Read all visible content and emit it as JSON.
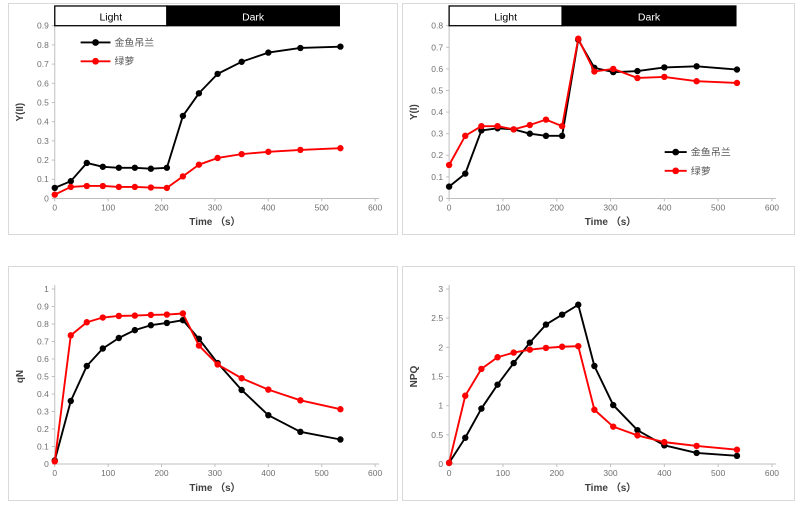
{
  "ui": {
    "colors": {
      "series_black": "#000000",
      "series_red": "#ff0000",
      "axis_line": "#bfbfbf",
      "tick_text": "#707070",
      "axis_title_text": "#404040",
      "legend_text": "#595959",
      "panel_border": "#d9d9d9",
      "band_dark_fill": "#000000",
      "band_light_fill": "#ffffff",
      "band_dark_text": "#ffffff",
      "band_light_text": "#000000",
      "background": "#ffffff"
    }
  },
  "chart_data": [
    {
      "type": "line",
      "ylabel": "Y(II)",
      "xlabel": "Time （s）",
      "x": [
        0,
        30,
        60,
        90,
        120,
        150,
        180,
        210,
        240,
        270,
        305,
        350,
        400,
        460,
        535
      ],
      "xticks": [
        "0",
        "100",
        "200",
        "300",
        "400",
        "500",
        "600"
      ],
      "yticks": [
        "0",
        "0.1",
        "0.2",
        "0.3",
        "0.4",
        "0.5",
        "0.6",
        "0.7",
        "0.8",
        "0.9"
      ],
      "xlim": [
        0,
        600
      ],
      "ylim": [
        0,
        0.9
      ],
      "grid": false,
      "legend_position": "top-left",
      "band": {
        "light_label": "Light",
        "dark_label": "Dark",
        "light_range_s": [
          0,
          210
        ],
        "dark_range_s": [
          210,
          533
        ]
      },
      "series": [
        {
          "key": "goldfish-plant",
          "name": "金鱼吊兰",
          "color": "#000000",
          "values": [
            0.055,
            0.09,
            0.185,
            0.165,
            0.16,
            0.16,
            0.155,
            0.16,
            0.43,
            0.548,
            0.649,
            0.712,
            0.76,
            0.784,
            0.791
          ]
        },
        {
          "key": "pothos",
          "name": "绿萝",
          "color": "#ff0000",
          "values": [
            0.02,
            0.06,
            0.065,
            0.065,
            0.06,
            0.06,
            0.057,
            0.055,
            0.115,
            0.176,
            0.211,
            0.231,
            0.243,
            0.253,
            0.262
          ]
        }
      ]
    },
    {
      "type": "line",
      "ylabel": "Y(I)",
      "xlabel": "Time （s）",
      "x": [
        0,
        30,
        60,
        90,
        120,
        150,
        180,
        210,
        240,
        270,
        305,
        350,
        400,
        460,
        535
      ],
      "xticks": [
        "0",
        "100",
        "200",
        "300",
        "400",
        "500",
        "600"
      ],
      "yticks": [
        "0",
        "0.1",
        "0.2",
        "0.3",
        "0.4",
        "0.5",
        "0.6",
        "0.7",
        "0.8"
      ],
      "xlim": [
        0,
        600
      ],
      "ylim": [
        0,
        0.8
      ],
      "grid": false,
      "legend_position": "middle-right",
      "band": {
        "light_label": "Light",
        "dark_label": "Dark",
        "light_range_s": [
          0,
          210
        ],
        "dark_range_s": [
          210,
          533
        ]
      },
      "series": [
        {
          "key": "goldfish-plant",
          "name": "金鱼吊兰",
          "color": "#000000",
          "values": [
            0.055,
            0.115,
            0.315,
            0.325,
            0.32,
            0.3,
            0.29,
            0.29,
            0.735,
            0.605,
            0.585,
            0.59,
            0.607,
            0.612,
            0.597
          ]
        },
        {
          "key": "pothos",
          "name": "绿萝",
          "color": "#ff0000",
          "values": [
            0.155,
            0.29,
            0.335,
            0.335,
            0.32,
            0.34,
            0.365,
            0.335,
            0.74,
            0.588,
            0.6,
            0.558,
            0.563,
            0.543,
            0.535
          ]
        }
      ]
    },
    {
      "type": "line",
      "ylabel": "qN",
      "xlabel": "Time （s）",
      "x": [
        0,
        30,
        60,
        90,
        120,
        150,
        180,
        210,
        240,
        270,
        305,
        350,
        400,
        460,
        535
      ],
      "xticks": [
        "0",
        "100",
        "200",
        "300",
        "400",
        "500",
        "600"
      ],
      "yticks": [
        "0",
        "0.1",
        "0.2",
        "0.3",
        "0.4",
        "0.5",
        "0.6",
        "0.7",
        "0.8",
        "0.9",
        "1"
      ],
      "xlim": [
        0,
        600
      ],
      "ylim": [
        0,
        1
      ],
      "grid": false,
      "legend_position": "none",
      "band": null,
      "series": [
        {
          "key": "goldfish-plant",
          "name": "金鱼吊兰",
          "color": "#000000",
          "values": [
            0.02,
            0.36,
            0.56,
            0.66,
            0.72,
            0.765,
            0.793,
            0.806,
            0.822,
            0.715,
            0.577,
            0.423,
            0.279,
            0.184,
            0.14
          ]
        },
        {
          "key": "pothos",
          "name": "绿萝",
          "color": "#ff0000",
          "values": [
            0.015,
            0.735,
            0.81,
            0.837,
            0.846,
            0.848,
            0.852,
            0.854,
            0.86,
            0.677,
            0.569,
            0.49,
            0.425,
            0.364,
            0.313
          ]
        }
      ]
    },
    {
      "type": "line",
      "ylabel": "NPQ",
      "xlabel": "Time （s）",
      "x": [
        0,
        30,
        60,
        90,
        120,
        150,
        180,
        210,
        240,
        270,
        305,
        350,
        400,
        460,
        535
      ],
      "xticks": [
        "0",
        "100",
        "200",
        "300",
        "400",
        "500",
        "600"
      ],
      "yticks": [
        "0",
        "0.5",
        "1",
        "1.5",
        "2",
        "2.5",
        "3"
      ],
      "xlim": [
        0,
        600
      ],
      "ylim": [
        0,
        3
      ],
      "grid": false,
      "legend_position": "none",
      "band": null,
      "series": [
        {
          "key": "goldfish-plant",
          "name": "金鱼吊兰",
          "color": "#000000",
          "values": [
            0.02,
            0.45,
            0.95,
            1.36,
            1.73,
            2.08,
            2.39,
            2.56,
            2.73,
            1.68,
            1.01,
            0.58,
            0.32,
            0.19,
            0.14
          ]
        },
        {
          "key": "pothos",
          "name": "绿萝",
          "color": "#ff0000",
          "values": [
            0.02,
            1.17,
            1.63,
            1.83,
            1.91,
            1.96,
            1.99,
            2.01,
            2.02,
            0.93,
            0.64,
            0.49,
            0.375,
            0.31,
            0.245
          ]
        }
      ]
    }
  ]
}
